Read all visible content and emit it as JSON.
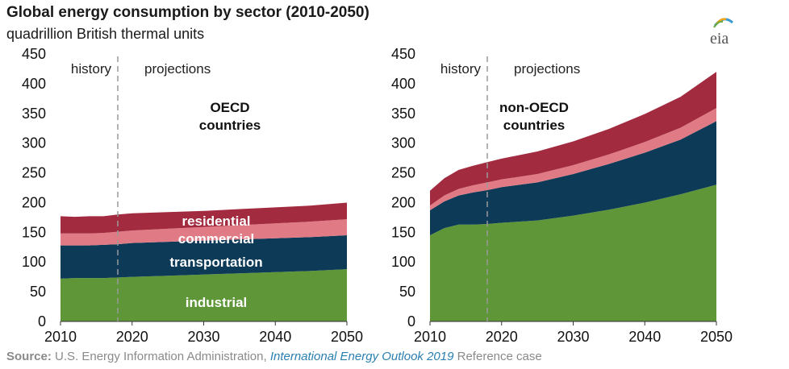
{
  "header": {
    "title": "Global energy consumption by sector (2010-2050)",
    "subtitle": "quadrillion British thermal units"
  },
  "logo": {
    "text": "eia",
    "icon": "eia-logo-icon",
    "colors": [
      "#3b9bd0",
      "#f3a51a",
      "#6aaa3a"
    ]
  },
  "source": {
    "prefix": "Source:",
    "agency": " U.S. Energy Information Administration, ",
    "publication": "International Energy Outlook 2019",
    "suffix": " Reference case"
  },
  "colors": {
    "industrial": "#5f9638",
    "transportation": "#0c3a57",
    "commercial": "#e07b86",
    "residential": "#a32b3f"
  },
  "chart_data": [
    {
      "type": "area",
      "stacked": true,
      "region_label": [
        "OECD",
        "countries"
      ],
      "period_labels": [
        "history",
        "projections"
      ],
      "divider_year": 2018,
      "x": [
        2010,
        2012,
        2014,
        2016,
        2018,
        2020,
        2025,
        2030,
        2035,
        2040,
        2045,
        2050
      ],
      "xlim": [
        2010,
        2050
      ],
      "xticks": [
        2010,
        2020,
        2030,
        2040,
        2050
      ],
      "ylim": [
        0,
        450
      ],
      "yticks": [
        0,
        50,
        100,
        150,
        200,
        250,
        300,
        350,
        400,
        450
      ],
      "series": [
        {
          "name": "industrial",
          "key": "industrial",
          "values": [
            72,
            73,
            73,
            73,
            74,
            75,
            77,
            79,
            81,
            83,
            85,
            88
          ]
        },
        {
          "name": "transportation",
          "key": "transportation",
          "values": [
            56,
            55,
            55,
            56,
            56,
            57,
            57,
            57,
            57,
            57,
            57,
            57
          ]
        },
        {
          "name": "commercial",
          "key": "commercial",
          "values": [
            20,
            20,
            20,
            20,
            21,
            21,
            22,
            23,
            24,
            25,
            26,
            27
          ]
        },
        {
          "name": "residential",
          "key": "residential",
          "values": [
            29,
            28,
            29,
            28,
            29,
            29,
            28,
            27,
            27,
            27,
            27,
            28
          ]
        }
      ]
    },
    {
      "type": "area",
      "stacked": true,
      "region_label": [
        "non-OECD",
        "countries"
      ],
      "period_labels": [
        "history",
        "projections"
      ],
      "divider_year": 2018,
      "x": [
        2010,
        2012,
        2014,
        2016,
        2018,
        2020,
        2025,
        2030,
        2035,
        2040,
        2045,
        2050
      ],
      "xlim": [
        2010,
        2050
      ],
      "xticks": [
        2010,
        2020,
        2030,
        2040,
        2050
      ],
      "ylim": [
        0,
        450
      ],
      "yticks": [
        0,
        50,
        100,
        150,
        200,
        250,
        300,
        350,
        400,
        450
      ],
      "series": [
        {
          "key": "industrial",
          "values": [
            145,
            157,
            163,
            163,
            164,
            166,
            170,
            178,
            188,
            200,
            214,
            230
          ]
        },
        {
          "key": "transportation",
          "values": [
            42,
            45,
            49,
            54,
            57,
            60,
            64,
            70,
            77,
            84,
            92,
            107
          ]
        },
        {
          "key": "commercial",
          "values": [
            8,
            10,
            11,
            12,
            13,
            13,
            14,
            15,
            16,
            18,
            20,
            22
          ]
        },
        {
          "key": "residential",
          "values": [
            25,
            29,
            32,
            33,
            34,
            35,
            38,
            40,
            43,
            47,
            52,
            61
          ]
        }
      ]
    }
  ]
}
